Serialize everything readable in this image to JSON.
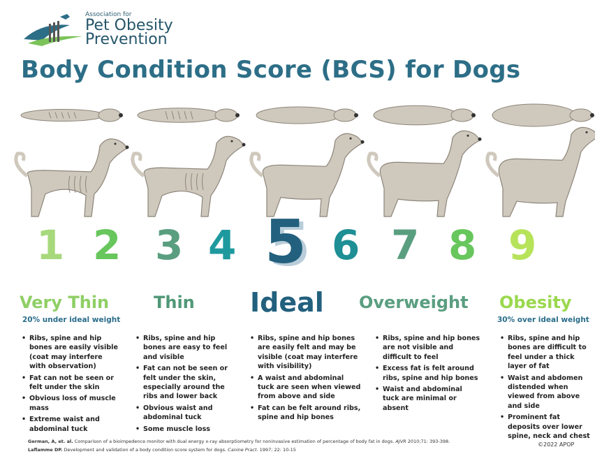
{
  "logo": {
    "small_text": "Association for",
    "line1": "Pet Obesity",
    "line2": "Prevention"
  },
  "title": "Body Condition Score (BCS) for Dogs",
  "scores": [
    {
      "number": "1",
      "color": "#a7d97c"
    },
    {
      "number": "2",
      "color": "#67c65c"
    },
    {
      "number": "3",
      "color": "#5a9e80"
    },
    {
      "number": "4",
      "color": "#1e9a9e"
    },
    {
      "number": "5",
      "color": "#22607e"
    },
    {
      "number": "6",
      "color": "#1e8f95"
    },
    {
      "number": "7",
      "color": "#5a9e80"
    },
    {
      "number": "8",
      "color": "#67c65c"
    },
    {
      "number": "9",
      "color": "#b6e35a"
    }
  ],
  "categories": {
    "very_thin": {
      "label": "Very Thin",
      "sub": "20% under ideal weight",
      "color": "#8fcf66"
    },
    "thin": {
      "label": "Thin",
      "color": "#4f9877"
    },
    "ideal": {
      "label": "Ideal",
      "color": "#22607e"
    },
    "overweight": {
      "label": "Overweight",
      "color": "#5a9e80"
    },
    "obesity": {
      "label": "Obesity",
      "sub": "30% over ideal weight",
      "color": "#9ad84e"
    }
  },
  "columns": {
    "col1": [
      "Ribs, spine and hip bones are easily visible (coat may interfere with observation)",
      "Fat can not be seen or felt under the skin",
      "Obvious loss of muscle mass",
      "Extreme waist and abdominal tuck"
    ],
    "col2": [
      "Ribs, spine and hip bones are easy to feel and visible",
      "Fat can not be seen or felt under the skin, especially around the ribs and lower back",
      "Obvious waist and abdominal tuck",
      "Some muscle loss"
    ],
    "col3": [
      "Ribs, spine and hip bones are easily felt and may be visible (coat may interfere with visibility)",
      "A waist and abdominal tuck are seen when viewed from above and side",
      "Fat can be felt around ribs, spine and hip bones"
    ],
    "col4": [
      "Ribs, spine and hip bones are not visible and difficult to feel",
      "Excess fat is felt around ribs, spine and hip bones",
      "Waist and abdominal tuck are minimal or absent"
    ],
    "col5": [
      "Ribs, spine and hip bones are difficult to feel under a thick layer of fat",
      "Waist and abdomen distended when viewed from above and side",
      "Prominent fat deposits over lower spine, neck and chest"
    ]
  },
  "references": {
    "ref1_authors": "German, A, et. al.",
    "ref1_text": "Comparison of a bioimpedence monitor with dual energy x-ray absorptiometry for noninvasive estimation of percentage of body fat in dogs.",
    "ref1_journal": "AJVR",
    "ref1_tail": "2010;71: 393-398.",
    "ref2_authors": "Laflamme DP.",
    "ref2_text": "Development and validation of a body condition score system for dogs.",
    "ref2_journal": "Canine Pract.",
    "ref2_tail": "1997; 22: 10-15"
  },
  "copyright": "©2022 APOP",
  "colors": {
    "title": "#2d6e87",
    "dog_fill": "#cfc8bc",
    "dog_stroke": "#8c857a"
  }
}
